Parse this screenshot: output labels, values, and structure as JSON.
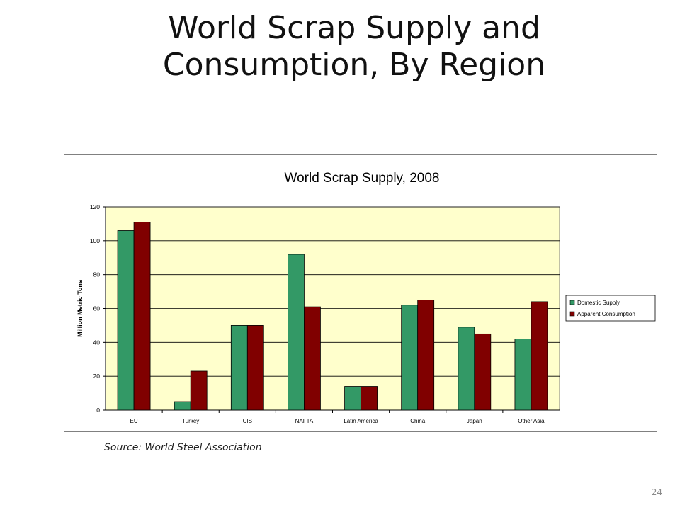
{
  "slide": {
    "title_line1": "World Scrap Supply and",
    "title_line2": "Consumption, By Region",
    "source": "Source:  World Steel Association",
    "page_number": "24"
  },
  "chart_data": {
    "type": "bar",
    "title": "World Scrap Supply, 2008",
    "xlabel": "",
    "ylabel": "Million Metric Tons",
    "categories": [
      "EU",
      "Turkey",
      "CIS",
      "NAFTA",
      "Latin America",
      "China",
      "Japan",
      "Other Asia"
    ],
    "series": [
      {
        "name": "Domestic Supply",
        "color": "#339966",
        "values": [
          106,
          5,
          50,
          92,
          14,
          62,
          49,
          42
        ]
      },
      {
        "name": "Apparent Consumption",
        "color": "#800000",
        "values": [
          111,
          23,
          50,
          61,
          14,
          65,
          45,
          64
        ]
      }
    ],
    "ylim": [
      0,
      120
    ],
    "yticks": [
      0,
      20,
      40,
      60,
      80,
      100,
      120
    ],
    "grid": true,
    "legend": "right",
    "plot_background": "#ffffcc"
  }
}
